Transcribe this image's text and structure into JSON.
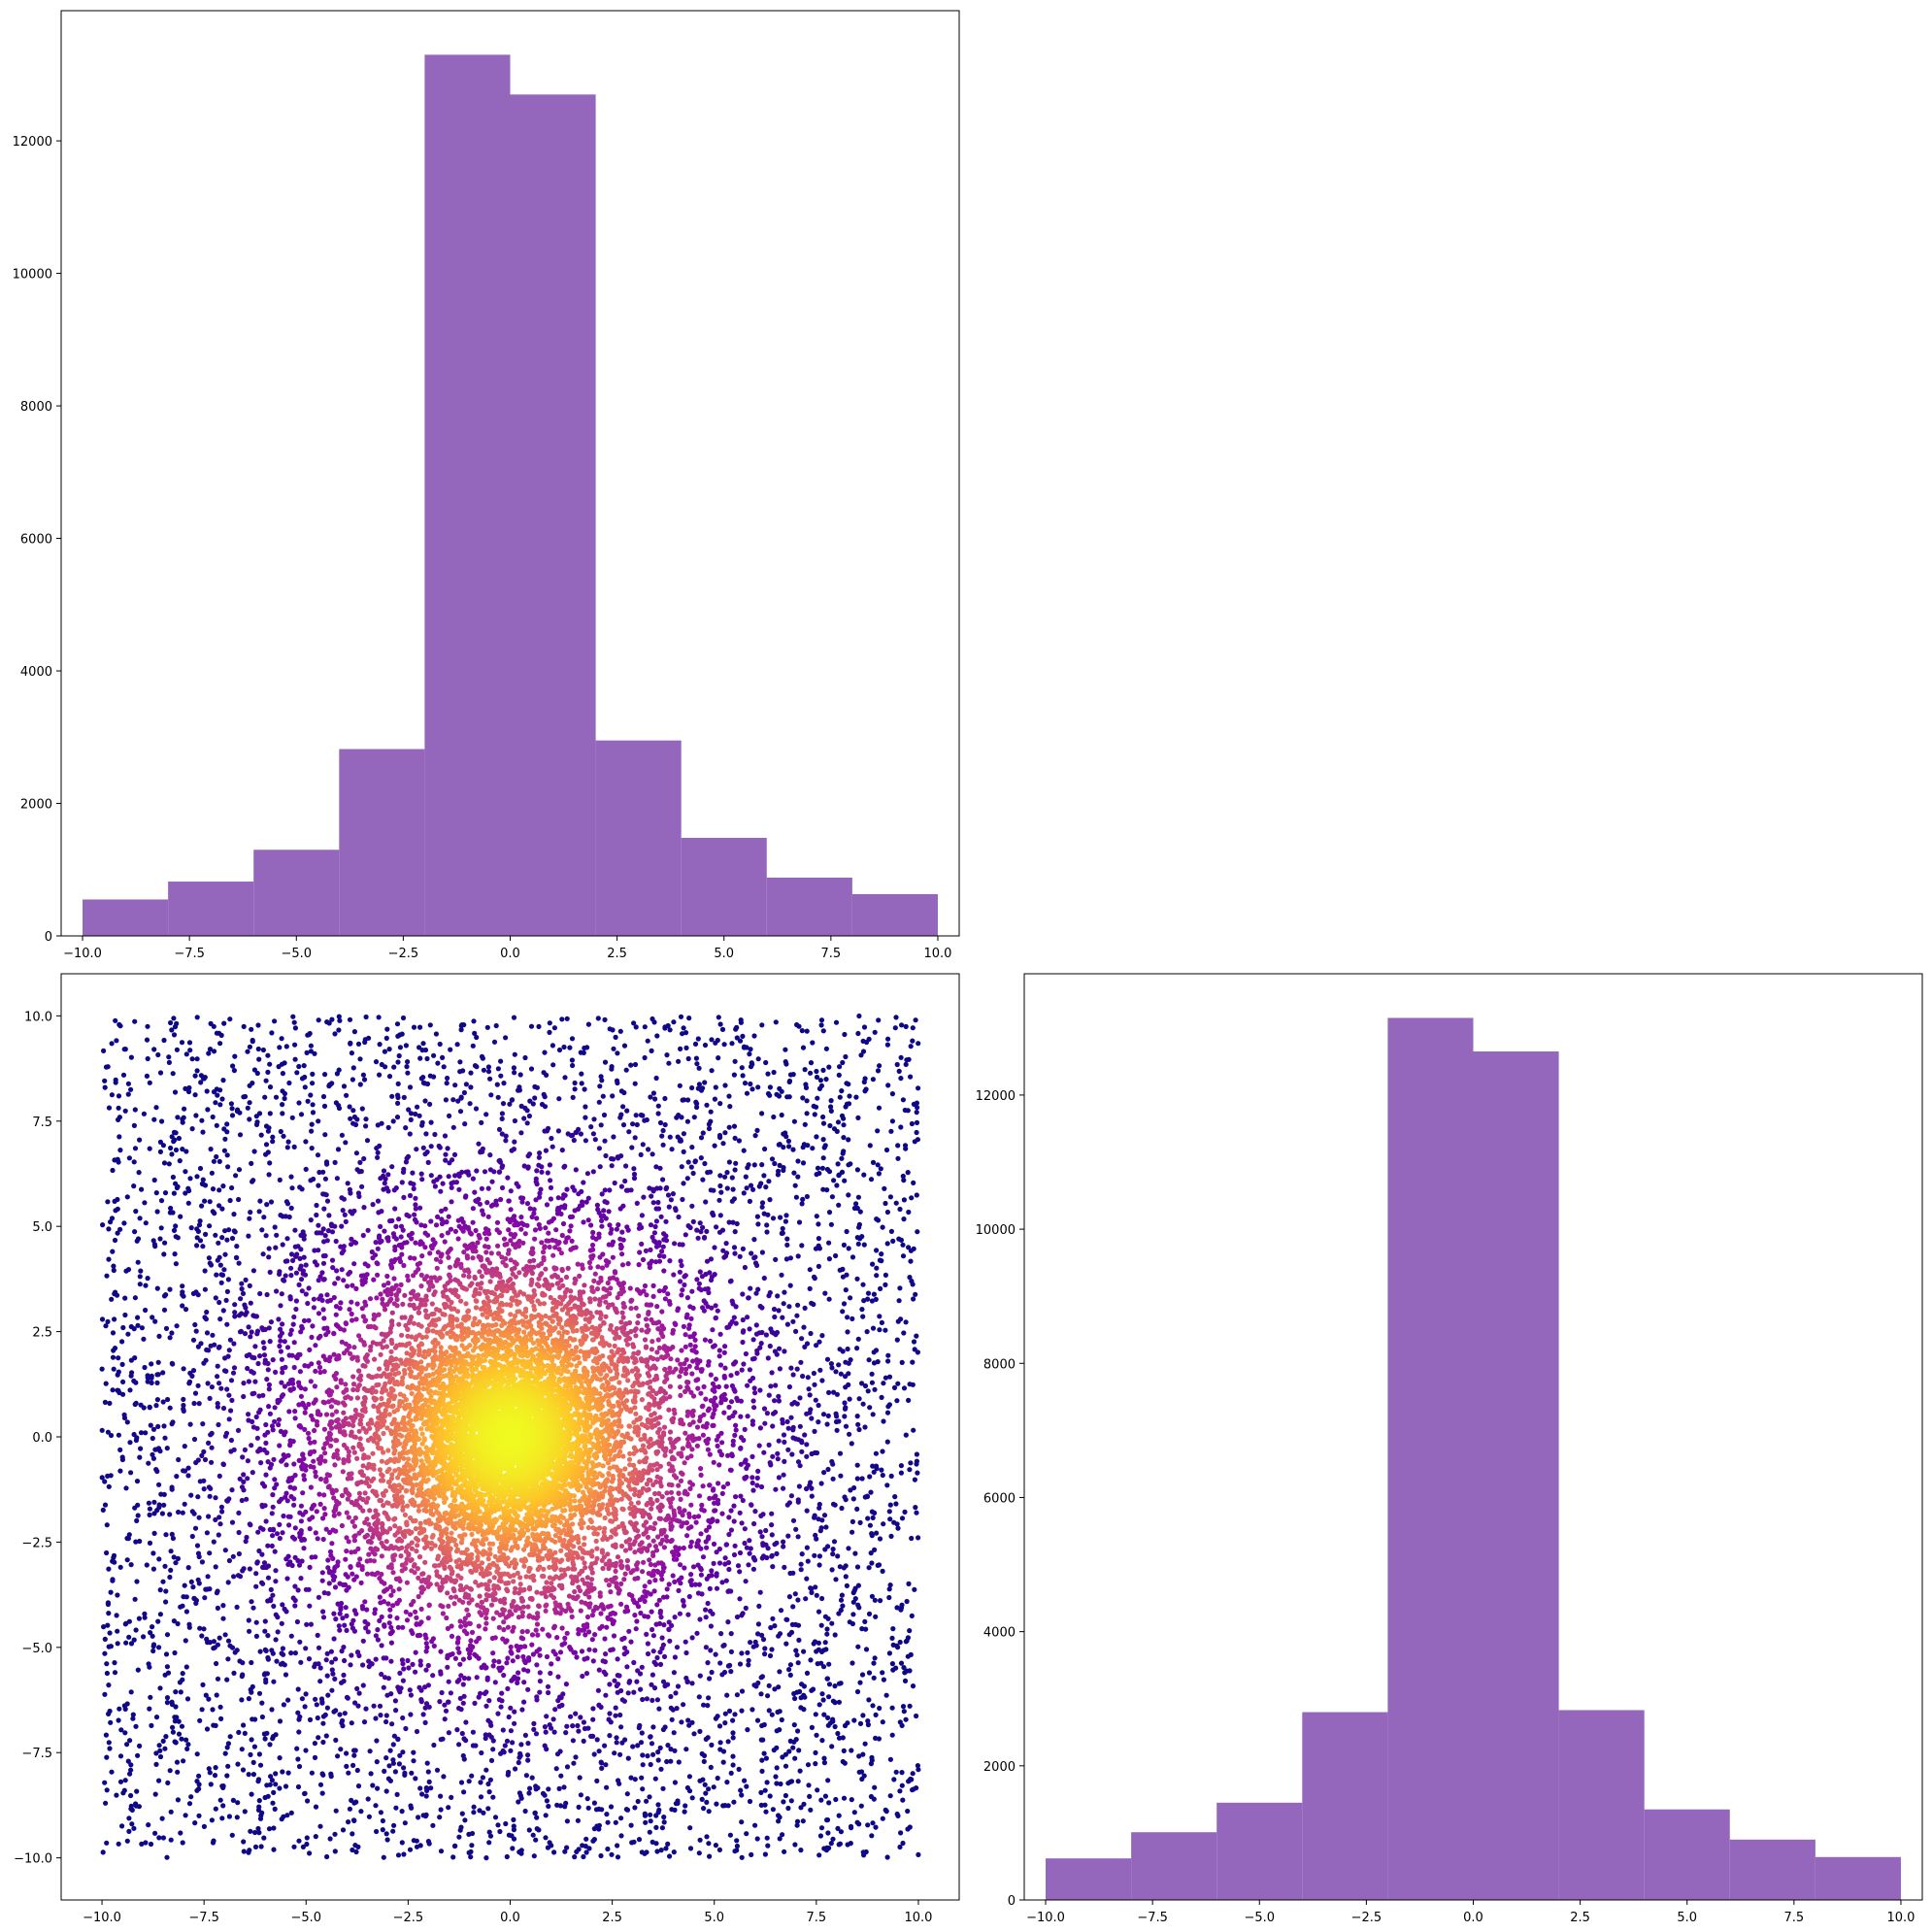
{
  "colors": {
    "bar_fill": "#9467bd",
    "axis": "#000000",
    "background": "#ffffff",
    "scatter_colormap": [
      "#0d0887",
      "#5302a3",
      "#8b0aa5",
      "#b83289",
      "#db5c68",
      "#f48849",
      "#febd2a",
      "#f0f921"
    ]
  },
  "chart_data": [
    {
      "id": "top-left-histogram",
      "type": "bar",
      "bin_edges": [
        -10,
        -8,
        -6,
        -4,
        -2,
        0,
        2,
        4,
        6,
        8,
        10
      ],
      "values": [
        550,
        820,
        1300,
        2820,
        13300,
        12700,
        2950,
        1480,
        880,
        630
      ],
      "xlim": [
        -10.5,
        10.5
      ],
      "ylim": [
        0,
        13965
      ],
      "xticks": [
        -10,
        -7.5,
        -5,
        -2.5,
        0,
        2.5,
        5,
        7.5,
        10
      ],
      "xtick_labels": [
        "−10.0",
        "−7.5",
        "−5.0",
        "−2.5",
        "0.0",
        "2.5",
        "5.0",
        "7.5",
        "10.0"
      ],
      "yticks": [
        0,
        2000,
        4000,
        6000,
        8000,
        10000,
        12000
      ],
      "ytick_labels": [
        "0",
        "2000",
        "4000",
        "6000",
        "8000",
        "10000",
        "12000"
      ],
      "grid": false
    },
    {
      "id": "bottom-left-scatter",
      "type": "scatter",
      "description_of_data": "points spread over the square -10..10; colored by density (plasma colormap), brightest near (0, 0)",
      "x_range": [
        -10,
        10
      ],
      "y_range": [
        -10,
        10
      ],
      "density_peak": [
        0,
        0
      ],
      "xlim": [
        -11,
        11
      ],
      "ylim": [
        -11,
        11
      ],
      "xticks": [
        -10,
        -7.5,
        -5,
        -2.5,
        0,
        2.5,
        5,
        7.5,
        10
      ],
      "xtick_labels": [
        "−10.0",
        "−7.5",
        "−5.0",
        "−2.5",
        "0.0",
        "2.5",
        "5.0",
        "7.5",
        "10.0"
      ],
      "yticks": [
        -10,
        -7.5,
        -5,
        -2.5,
        0,
        2.5,
        5,
        7.5,
        10
      ],
      "ytick_labels": [
        "−10.0",
        "−7.5",
        "−5.0",
        "−2.5",
        "0.0",
        "2.5",
        "5.0",
        "7.5",
        "10.0"
      ],
      "grid": false
    },
    {
      "id": "bottom-right-histogram",
      "type": "bar",
      "bin_edges": [
        -10,
        -8,
        -6,
        -4,
        -2,
        0,
        2,
        4,
        6,
        8,
        10
      ],
      "values": [
        620,
        1010,
        1450,
        2800,
        13150,
        12650,
        2830,
        1350,
        900,
        640
      ],
      "xlim": [
        -10.5,
        10.5
      ],
      "ylim": [
        0,
        13808
      ],
      "xticks": [
        -10,
        -7.5,
        -5,
        -2.5,
        0,
        2.5,
        5,
        7.5,
        10
      ],
      "xtick_labels": [
        "−10.0",
        "−7.5",
        "−5.0",
        "−2.5",
        "0.0",
        "2.5",
        "5.0",
        "7.5",
        "10.0"
      ],
      "yticks": [
        0,
        2000,
        4000,
        6000,
        8000,
        10000,
        12000
      ],
      "ytick_labels": [
        "0",
        "2000",
        "4000",
        "6000",
        "8000",
        "10000",
        "12000"
      ],
      "grid": false
    }
  ]
}
